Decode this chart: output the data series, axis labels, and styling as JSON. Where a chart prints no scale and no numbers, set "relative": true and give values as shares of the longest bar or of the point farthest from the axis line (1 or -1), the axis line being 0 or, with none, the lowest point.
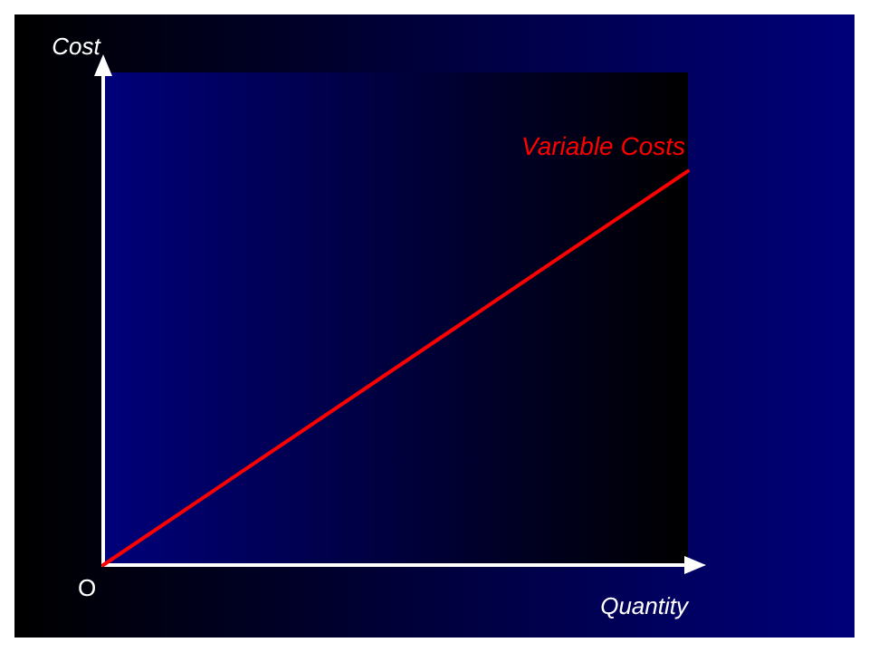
{
  "chart_data": {
    "type": "line",
    "xlabel": "Quantity",
    "ylabel": "Cost",
    "relative": true,
    "categories": [
      null,
      null
    ],
    "grid": false,
    "legend": false,
    "marker": "none",
    "line_style": "solid",
    "series": [
      {
        "name": "Variable Costs",
        "color": "#ff0000",
        "values": [
          0,
          1
        ]
      }
    ],
    "annotations": [
      "O"
    ]
  }
}
